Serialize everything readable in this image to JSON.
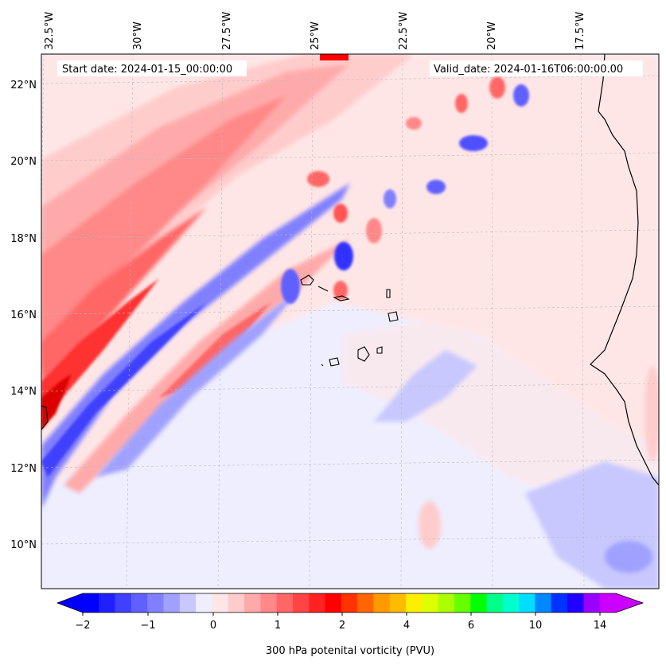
{
  "header": {
    "start_date": "Start date: 2024-01-15_00:00:00",
    "valid_date": "Valid_date: 2024-01-16T06:00:00.00"
  },
  "map": {
    "longitude_labels": [
      "32.5°W",
      "30°W",
      "27.5°W",
      "25°W",
      "22.5°W",
      "20°W",
      "17.5°W"
    ],
    "latitude_labels": [
      "22°N",
      "20°N",
      "18°N",
      "16°N",
      "14°N",
      "12°N",
      "10°N"
    ]
  },
  "colorbar": {
    "label": "300 hPa potenital vorticity (PVU)",
    "ticks": [
      "−2",
      "−1",
      "0",
      "1",
      "2",
      "4",
      "6",
      "10",
      "14"
    ],
    "colors": [
      "#0000ff",
      "#2020ff",
      "#4040ff",
      "#6060ff",
      "#8080ff",
      "#a0a0ff",
      "#c8c8ff",
      "#eeeeff",
      "#ffe6e6",
      "#ffcccc",
      "#ffaaaa",
      "#ff8888",
      "#ff6666",
      "#ff4444",
      "#ff2222",
      "#ff0000",
      "#ff3300",
      "#ff6600",
      "#ff9900",
      "#ffbb00",
      "#ffee00",
      "#ddff00",
      "#aaff00",
      "#66ff00",
      "#00ff00",
      "#00ff88",
      "#00ffcc",
      "#00ddff",
      "#0088ff",
      "#0033ff",
      "#2200ff",
      "#9900ff",
      "#cc00ff"
    ]
  }
}
